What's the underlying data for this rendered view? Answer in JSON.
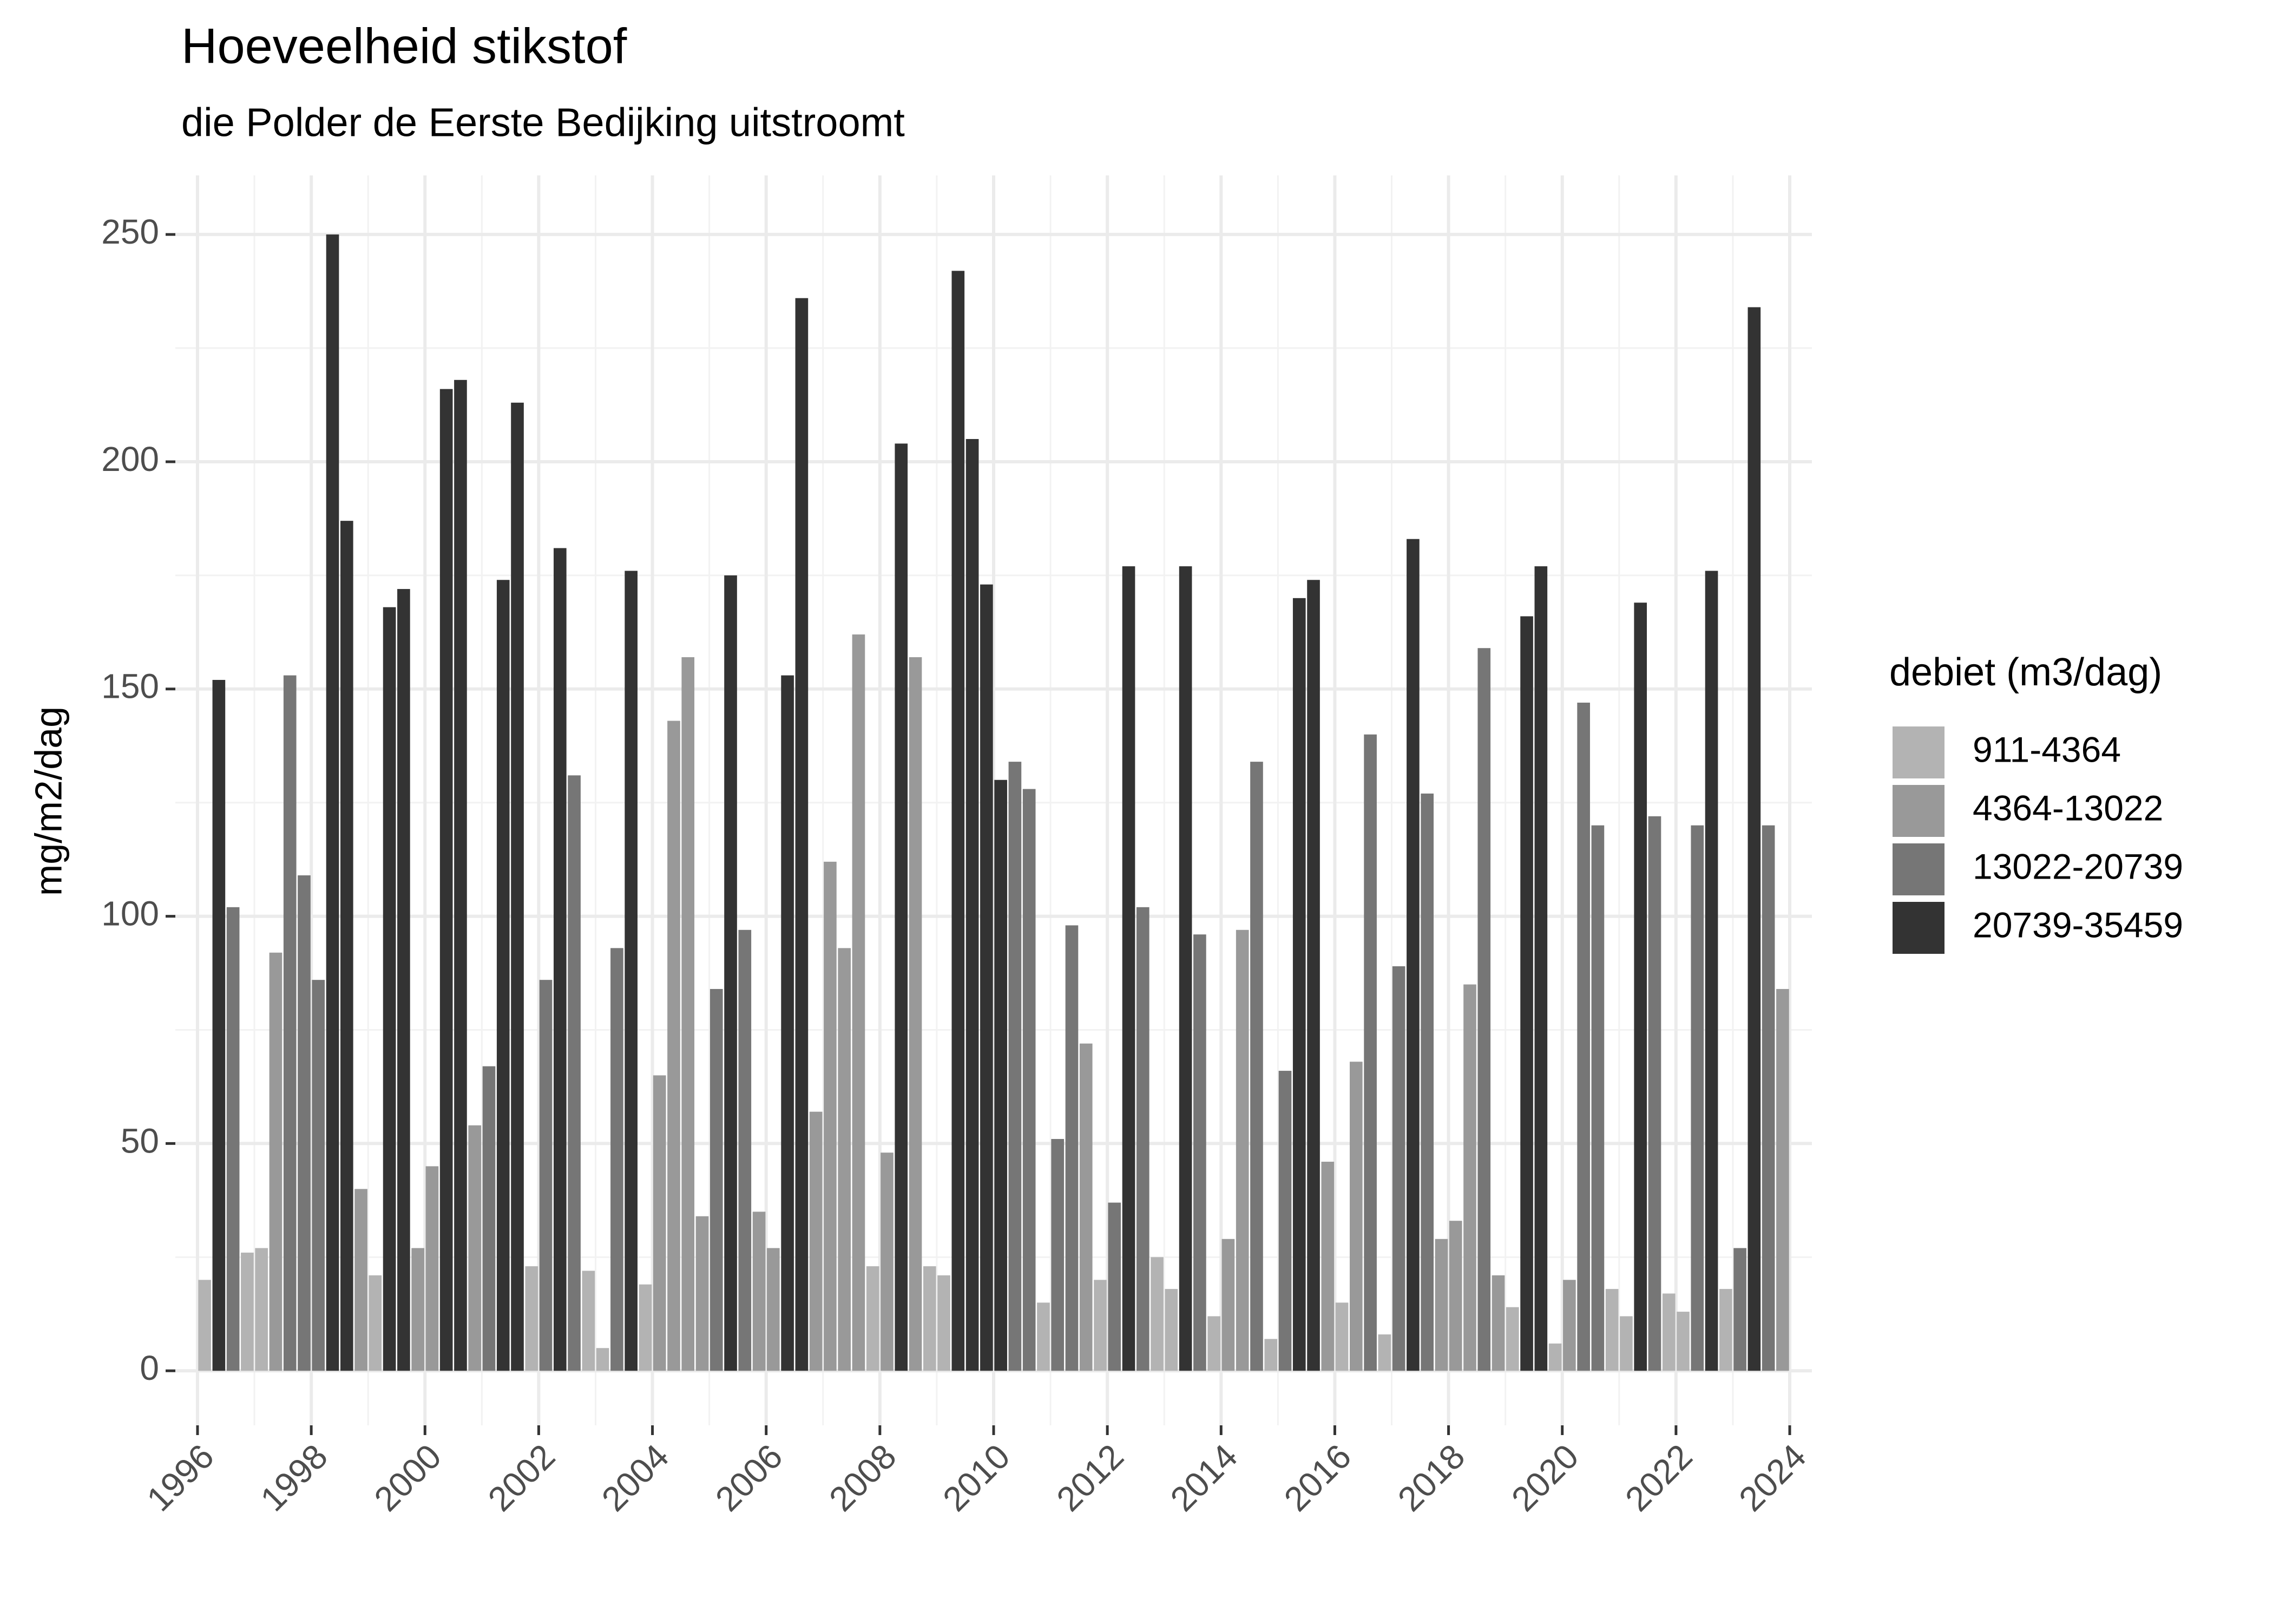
{
  "chart_data": {
    "type": "bar",
    "title": "Hoeveelheid stikstof",
    "subtitle": "die Polder de Eerste Bedijking uitstroomt",
    "y_label": "mg/m2/dag",
    "legend_title": "debiet (m3/dag)",
    "xlim": [
      1995.61,
      2024.39
    ],
    "xticks": [
      1996,
      1998,
      2000,
      2002,
      2004,
      2006,
      2008,
      2010,
      2012,
      2014,
      2016,
      2018,
      2020,
      2022,
      2024
    ],
    "ylim": [
      -12,
      263
    ],
    "yticks": [
      0,
      50,
      100,
      150,
      200,
      250
    ],
    "grid": true,
    "series": [
      {
        "name": "911-4364",
        "color": "#b3b3b3",
        "x": [
          1996.125,
          1996.875,
          1997.125,
          1999.125,
          2001.875,
          2002.875,
          2003.125,
          2003.875,
          2007.875,
          2008.875,
          2009.125,
          2010.875,
          2011.875,
          2012.875,
          2013.125,
          2013.875,
          2014.875,
          2016.125,
          2016.875,
          2019.125,
          2019.875,
          2020.875,
          2021.125,
          2021.875,
          2022.125,
          2022.875
        ],
        "values": [
          20,
          26,
          27,
          21,
          23,
          22,
          5,
          19,
          23,
          23,
          21,
          15,
          20,
          25,
          18,
          12,
          7,
          15,
          8,
          14,
          6,
          18,
          12,
          17,
          13,
          18
        ]
      },
      {
        "name": "4364-13022",
        "color": "#999999",
        "x": [
          1997.375,
          1998.875,
          1999.875,
          2000.125,
          2000.875,
          2004.125,
          2004.375,
          2004.625,
          2004.875,
          2005.875,
          2006.125,
          2006.875,
          2007.125,
          2007.375,
          2007.625,
          2008.125,
          2008.625,
          2011.625,
          2014.125,
          2014.375,
          2015.875,
          2016.375,
          2017.875,
          2018.125,
          2018.375,
          2018.875,
          2020.125,
          2023.875
        ],
        "values": [
          92,
          40,
          27,
          45,
          54,
          65,
          143,
          157,
          34,
          35,
          27,
          57,
          112,
          93,
          162,
          48,
          157,
          72,
          29,
          97,
          46,
          68,
          29,
          33,
          85,
          21,
          20,
          84
        ]
      },
      {
        "name": "13022-20739",
        "color": "#767676",
        "x": [
          1996.625,
          1997.625,
          1997.875,
          1998.125,
          2001.125,
          2002.125,
          2002.625,
          2003.375,
          2005.125,
          2005.625,
          2010.375,
          2010.625,
          2011.125,
          2011.375,
          2012.125,
          2012.625,
          2013.625,
          2014.625,
          2015.125,
          2016.625,
          2017.125,
          2017.625,
          2018.625,
          2020.375,
          2020.625,
          2021.625,
          2022.375,
          2023.125,
          2023.625
        ],
        "values": [
          102,
          153,
          109,
          86,
          67,
          86,
          131,
          93,
          84,
          97,
          134,
          128,
          51,
          98,
          37,
          102,
          96,
          134,
          66,
          140,
          89,
          127,
          159,
          147,
          120,
          122,
          120,
          27,
          120
        ]
      },
      {
        "name": "20739-35459",
        "color": "#333333",
        "x": [
          1996.375,
          1998.375,
          1998.625,
          1999.375,
          1999.625,
          2000.375,
          2000.625,
          2001.375,
          2001.625,
          2002.375,
          2003.625,
          2005.375,
          2006.375,
          2006.625,
          2008.375,
          2009.375,
          2009.625,
          2009.875,
          2010.125,
          2012.375,
          2013.375,
          2015.375,
          2015.625,
          2017.375,
          2019.375,
          2019.625,
          2021.375,
          2022.625,
          2023.375
        ],
        "values": [
          152,
          250,
          187,
          168,
          172,
          216,
          218,
          174,
          213,
          181,
          176,
          175,
          153,
          236,
          204,
          242,
          205,
          173,
          130,
          177,
          177,
          170,
          174,
          183,
          166,
          177,
          169,
          176,
          234
        ]
      }
    ]
  }
}
